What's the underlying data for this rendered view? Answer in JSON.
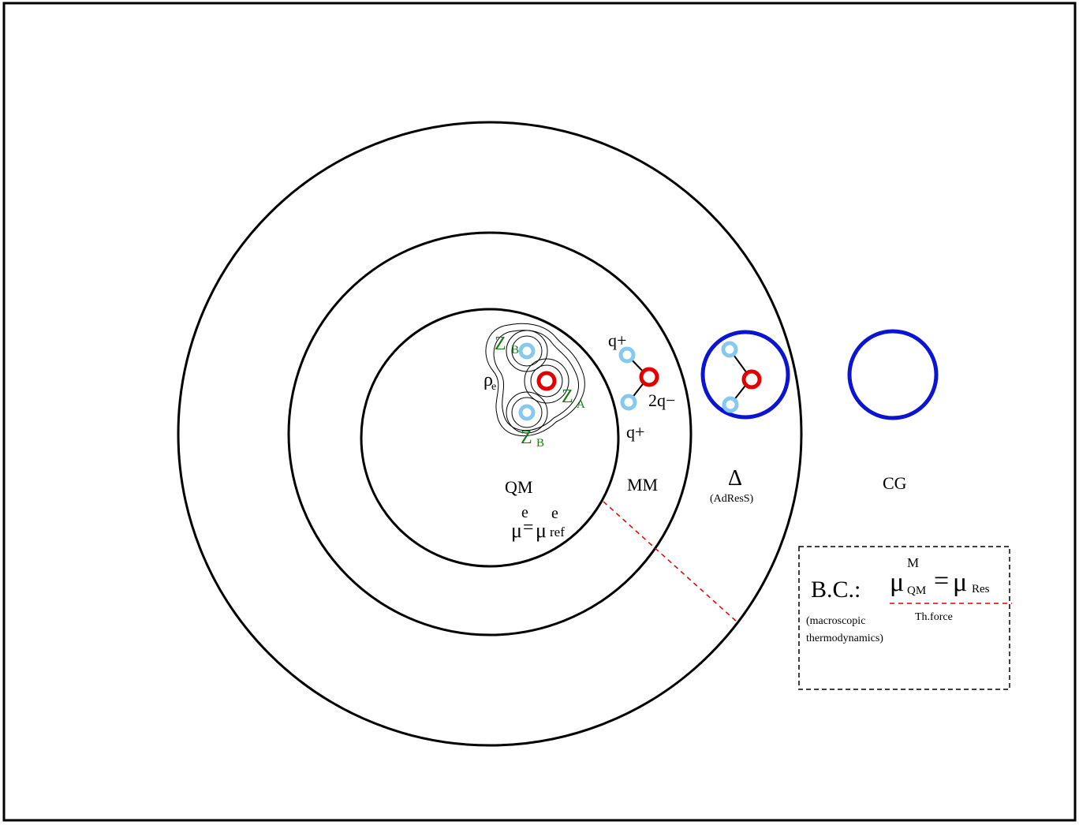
{
  "regions": {
    "qm": "QM",
    "mm": "MM",
    "delta": "Δ",
    "adress": "(AdResS)",
    "cg": "CG"
  },
  "qm_molecule": {
    "rho": "ρ",
    "rho_sub": "e",
    "za": "Z",
    "za_sub": "A",
    "zb_top": "Z",
    "zb_top_sub": "B",
    "zb_bottom": "Z",
    "zb_bottom_sub": "B"
  },
  "chemical_potential": {
    "mu": "μ",
    "mu_sup": "e",
    "equals": "=",
    "mu_ref": "μ",
    "mu_ref_sup": "e",
    "mu_ref_sub": "ref"
  },
  "mm_molecule": {
    "q_top": "q+",
    "q_bottom": "q+",
    "q_center": "2q−"
  },
  "boundary_box": {
    "bc": "B.C.:",
    "mu_left": "μ",
    "mu_left_sup": "M",
    "mu_left_sub": "QM",
    "equals": "=",
    "mu_right": "μ",
    "mu_right_sub": "Res",
    "thforce": "Th.force",
    "note_line1": "(macroscopic",
    "note_line2": "thermodynamics)"
  },
  "colors": {
    "outline": "#000000",
    "oxygen": "#e00000",
    "hydrogen": "#87c8f0",
    "cg_blue": "#0a14d2",
    "zlabel": "#1a7a1a",
    "connector": "#e00000"
  }
}
